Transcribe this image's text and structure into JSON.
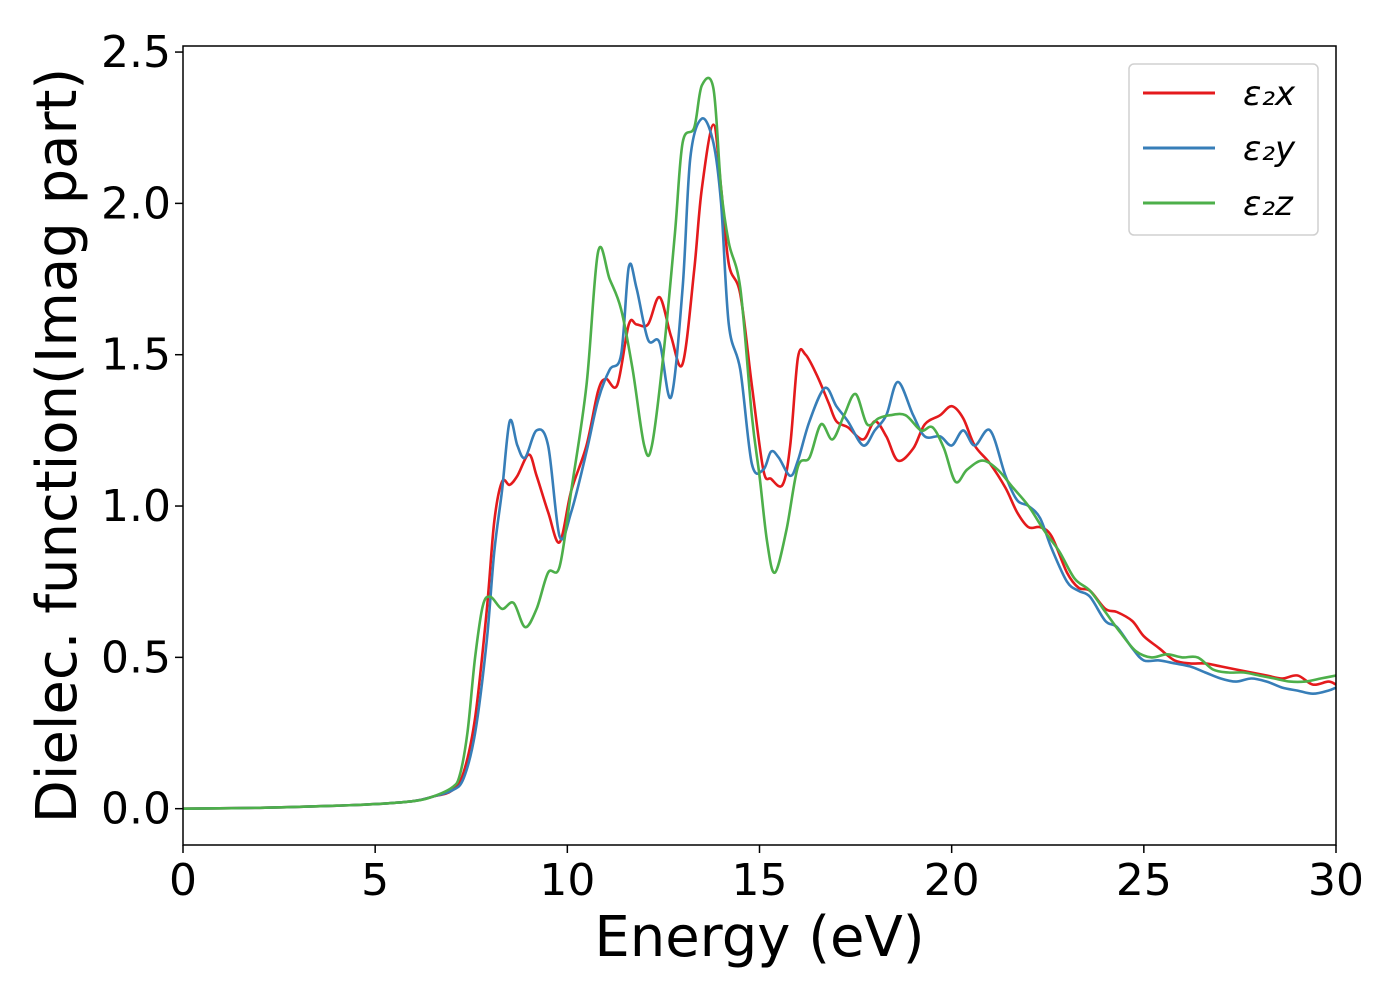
{
  "chart_data": {
    "type": "line",
    "xlabel": "Energy (eV)",
    "ylabel": "Dielec. function(Imag part)",
    "xlim": [
      0,
      30
    ],
    "ylim": [
      -0.12,
      2.52
    ],
    "xticks": [
      0,
      5,
      10,
      15,
      20,
      25,
      30
    ],
    "xtick_labels": [
      "0",
      "5",
      "10",
      "15",
      "20",
      "25",
      "30"
    ],
    "yticks": [
      0.0,
      0.5,
      1.0,
      1.5,
      2.0,
      2.5
    ],
    "ytick_labels": [
      "0.0",
      "0.5",
      "1.0",
      "1.5",
      "2.0",
      "2.5"
    ],
    "grid": false,
    "legend_position": "top-right",
    "series": [
      {
        "name": "ε₂x",
        "color": "#e41a1c",
        "x": [
          0,
          2,
          4,
          5,
          6,
          6.5,
          7,
          7.3,
          7.6,
          7.9,
          8.1,
          8.3,
          8.5,
          8.7,
          9.0,
          9.2,
          9.5,
          9.8,
          10.1,
          10.5,
          10.8,
          11.0,
          11.3,
          11.6,
          11.8,
          12.1,
          12.4,
          12.7,
          13.0,
          13.3,
          13.5,
          13.8,
          14.0,
          14.2,
          14.5,
          14.8,
          15.1,
          15.3,
          15.6,
          15.8,
          16.0,
          16.2,
          16.5,
          16.8,
          17.0,
          17.3,
          17.7,
          18.0,
          18.3,
          18.6,
          19.0,
          19.3,
          19.7,
          20.0,
          20.3,
          20.6,
          21.0,
          21.4,
          21.7,
          22.0,
          22.3,
          22.6,
          23.0,
          23.3,
          23.6,
          24.0,
          24.3,
          24.7,
          25.0,
          25.4,
          25.8,
          26.2,
          26.6,
          27.0,
          27.4,
          27.8,
          28.2,
          28.6,
          29.0,
          29.4,
          29.8,
          30.0
        ],
        "y": [
          0.0,
          0.003,
          0.01,
          0.015,
          0.025,
          0.04,
          0.06,
          0.12,
          0.3,
          0.65,
          0.95,
          1.08,
          1.07,
          1.1,
          1.17,
          1.1,
          0.98,
          0.88,
          1.05,
          1.2,
          1.38,
          1.42,
          1.4,
          1.6,
          1.6,
          1.6,
          1.69,
          1.56,
          1.47,
          1.78,
          2.05,
          2.26,
          2.05,
          1.8,
          1.7,
          1.4,
          1.12,
          1.09,
          1.07,
          1.2,
          1.49,
          1.5,
          1.43,
          1.34,
          1.28,
          1.26,
          1.22,
          1.28,
          1.23,
          1.15,
          1.19,
          1.27,
          1.3,
          1.33,
          1.29,
          1.2,
          1.14,
          1.06,
          0.98,
          0.93,
          0.93,
          0.9,
          0.78,
          0.73,
          0.72,
          0.66,
          0.65,
          0.62,
          0.57,
          0.53,
          0.49,
          0.48,
          0.48,
          0.47,
          0.46,
          0.45,
          0.44,
          0.43,
          0.44,
          0.41,
          0.42,
          0.41
        ]
      },
      {
        "name": "ε₂y",
        "color": "#377eb8",
        "x": [
          0,
          2,
          4,
          5,
          6,
          6.5,
          7,
          7.3,
          7.6,
          7.9,
          8.1,
          8.3,
          8.5,
          8.7,
          8.9,
          9.2,
          9.5,
          9.8,
          10.1,
          10.5,
          10.8,
          11.1,
          11.4,
          11.6,
          11.8,
          12.1,
          12.4,
          12.7,
          13.0,
          13.2,
          13.5,
          13.8,
          14.0,
          14.2,
          14.5,
          14.8,
          15.1,
          15.3,
          15.5,
          15.8,
          16.0,
          16.3,
          16.7,
          17.0,
          17.3,
          17.7,
          18.0,
          18.3,
          18.6,
          19.0,
          19.3,
          19.7,
          20.0,
          20.3,
          20.6,
          21.0,
          21.4,
          21.7,
          22.0,
          22.3,
          22.6,
          23.0,
          23.3,
          23.6,
          24.0,
          24.3,
          24.7,
          25.0,
          25.4,
          25.8,
          26.2,
          26.6,
          27.0,
          27.4,
          27.8,
          28.2,
          28.6,
          29.0,
          29.4,
          29.8,
          30.0
        ],
        "y": [
          0.0,
          0.003,
          0.01,
          0.015,
          0.025,
          0.04,
          0.06,
          0.1,
          0.25,
          0.55,
          0.85,
          1.05,
          1.28,
          1.2,
          1.16,
          1.25,
          1.2,
          0.9,
          0.98,
          1.18,
          1.35,
          1.45,
          1.5,
          1.79,
          1.72,
          1.55,
          1.54,
          1.36,
          1.72,
          2.15,
          2.28,
          2.2,
          2.0,
          1.6,
          1.45,
          1.14,
          1.12,
          1.18,
          1.16,
          1.1,
          1.15,
          1.28,
          1.39,
          1.33,
          1.28,
          1.2,
          1.25,
          1.3,
          1.41,
          1.3,
          1.23,
          1.23,
          1.2,
          1.25,
          1.2,
          1.25,
          1.1,
          1.02,
          1.0,
          0.96,
          0.86,
          0.75,
          0.72,
          0.7,
          0.62,
          0.6,
          0.53,
          0.49,
          0.49,
          0.48,
          0.47,
          0.45,
          0.43,
          0.42,
          0.43,
          0.42,
          0.4,
          0.39,
          0.38,
          0.39,
          0.4
        ]
      },
      {
        "name": "ε₂z",
        "color": "#4daf4a",
        "x": [
          0,
          2,
          4,
          5,
          6,
          6.5,
          7,
          7.2,
          7.4,
          7.6,
          7.8,
          8.0,
          8.3,
          8.6,
          8.9,
          9.2,
          9.5,
          9.8,
          10.1,
          10.5,
          10.8,
          11.1,
          11.4,
          11.7,
          12.0,
          12.2,
          12.5,
          12.8,
          13.0,
          13.3,
          13.5,
          13.8,
          14.0,
          14.2,
          14.5,
          14.8,
          15.0,
          15.2,
          15.4,
          15.7,
          16.0,
          16.3,
          16.6,
          16.9,
          17.2,
          17.5,
          17.8,
          18.1,
          18.4,
          18.8,
          19.2,
          19.5,
          19.8,
          20.1,
          20.4,
          20.8,
          21.2,
          21.6,
          22.0,
          22.4,
          22.8,
          23.2,
          23.6,
          24.0,
          24.4,
          24.8,
          25.2,
          25.6,
          26.0,
          26.4,
          26.8,
          27.2,
          27.6,
          28.0,
          28.4,
          28.8,
          29.2,
          29.6,
          30.0
        ],
        "y": [
          0.0,
          0.003,
          0.01,
          0.015,
          0.025,
          0.04,
          0.07,
          0.11,
          0.25,
          0.5,
          0.67,
          0.7,
          0.66,
          0.68,
          0.6,
          0.66,
          0.78,
          0.8,
          1.05,
          1.4,
          1.84,
          1.75,
          1.65,
          1.45,
          1.2,
          1.2,
          1.5,
          1.9,
          2.2,
          2.25,
          2.39,
          2.38,
          2.05,
          1.87,
          1.72,
          1.3,
          1.1,
          0.88,
          0.78,
          0.92,
          1.13,
          1.16,
          1.27,
          1.22,
          1.3,
          1.37,
          1.27,
          1.29,
          1.3,
          1.3,
          1.25,
          1.26,
          1.19,
          1.08,
          1.12,
          1.15,
          1.12,
          1.06,
          1.0,
          0.92,
          0.85,
          0.76,
          0.72,
          0.65,
          0.58,
          0.52,
          0.5,
          0.51,
          0.5,
          0.5,
          0.46,
          0.45,
          0.45,
          0.44,
          0.43,
          0.42,
          0.42,
          0.43,
          0.44
        ]
      }
    ]
  }
}
